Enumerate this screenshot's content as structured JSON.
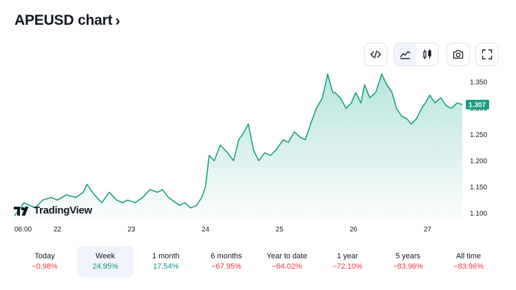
{
  "header": {
    "title": "APEUSD chart",
    "title_chevron": "›"
  },
  "toolbar": {
    "buttons": [
      {
        "name": "embed-code",
        "icon": "code-brackets-icon"
      },
      {
        "name": "area-chart-type",
        "icon": "area-chart-icon",
        "active": true
      },
      {
        "name": "candles-chart-type",
        "icon": "candlestick-icon"
      },
      {
        "name": "snapshot",
        "icon": "camera-icon"
      },
      {
        "name": "fullscreen",
        "icon": "fullscreen-icon"
      }
    ]
  },
  "logo": {
    "text": "TradingView"
  },
  "periods": [
    {
      "label": "Today",
      "value": "−0.98%",
      "trend": "neg"
    },
    {
      "label": "Week",
      "value": "24.95%",
      "trend": "pos",
      "active": true
    },
    {
      "label": "1 month",
      "value": "17.54%",
      "trend": "pos"
    },
    {
      "label": "6 months",
      "value": "−67.95%",
      "trend": "neg"
    },
    {
      "label": "Year to date",
      "value": "−64.02%",
      "trend": "neg"
    },
    {
      "label": "1 year",
      "value": "−72.10%",
      "trend": "neg"
    },
    {
      "label": "5 years",
      "value": "−83.96%",
      "trend": "neg"
    },
    {
      "label": "All time",
      "value": "−83.96%",
      "trend": "neg"
    }
  ],
  "colors": {
    "line": "#1a9e80",
    "fill": "#22ab94",
    "price_badge": "#1a9e80",
    "negative": "#f23645",
    "positive": "#089981"
  },
  "chart_data": {
    "type": "area",
    "title": "APEUSD chart",
    "xlabel": "",
    "ylabel": "",
    "ylim": [
      1.085,
      1.375
    ],
    "xlim": [
      21.42,
      27.47
    ],
    "y_ticks": [
      "1.350",
      "1.300",
      "1.250",
      "1.200",
      "1.150",
      "1.100"
    ],
    "y_tick_values": [
      1.35,
      1.3,
      1.25,
      1.2,
      1.15,
      1.1
    ],
    "x_ticks": [
      "06:00",
      "22",
      "23",
      "24",
      "25",
      "26",
      "27"
    ],
    "x_tick_values": [
      21.25,
      22,
      23,
      24,
      25,
      26,
      27
    ],
    "last_price": "1.307",
    "last_price_value": 1.307,
    "grid": false,
    "series": [
      {
        "x": [
          21.42,
          21.55,
          21.7,
          21.8,
          21.92,
          22.0,
          22.12,
          22.25,
          22.35,
          22.4,
          22.5,
          22.6,
          22.7,
          22.8,
          22.88,
          22.95,
          23.05,
          23.15,
          23.25,
          23.35,
          23.42,
          23.5,
          23.6,
          23.65,
          23.72,
          23.8,
          23.88,
          23.95,
          24.0,
          24.05,
          24.12,
          24.2,
          24.3,
          24.38,
          24.45,
          24.5,
          24.58,
          24.65,
          24.72,
          24.8,
          24.88,
          24.95,
          25.05,
          25.12,
          25.2,
          25.28,
          25.35,
          25.42,
          25.5,
          25.58,
          25.65,
          25.72,
          25.75,
          25.82,
          25.9,
          25.97,
          26.03,
          26.1,
          26.15,
          26.22,
          26.3,
          26.38,
          26.45,
          26.52,
          26.58,
          26.65,
          26.72,
          26.78,
          26.85,
          26.92,
          26.97,
          27.03,
          27.1,
          27.18,
          27.25,
          27.32,
          27.4,
          27.47
        ],
        "y": [
          1.095,
          1.12,
          1.11,
          1.125,
          1.13,
          1.125,
          1.135,
          1.13,
          1.14,
          1.155,
          1.135,
          1.12,
          1.14,
          1.125,
          1.12,
          1.125,
          1.12,
          1.13,
          1.145,
          1.14,
          1.145,
          1.13,
          1.12,
          1.115,
          1.12,
          1.11,
          1.115,
          1.13,
          1.15,
          1.21,
          1.2,
          1.23,
          1.215,
          1.2,
          1.24,
          1.25,
          1.27,
          1.22,
          1.2,
          1.215,
          1.21,
          1.22,
          1.24,
          1.235,
          1.255,
          1.245,
          1.24,
          1.27,
          1.3,
          1.32,
          1.365,
          1.33,
          1.33,
          1.32,
          1.3,
          1.31,
          1.33,
          1.31,
          1.345,
          1.32,
          1.33,
          1.365,
          1.345,
          1.33,
          1.3,
          1.285,
          1.28,
          1.27,
          1.28,
          1.3,
          1.31,
          1.325,
          1.31,
          1.32,
          1.305,
          1.3,
          1.31,
          1.307
        ]
      }
    ]
  }
}
